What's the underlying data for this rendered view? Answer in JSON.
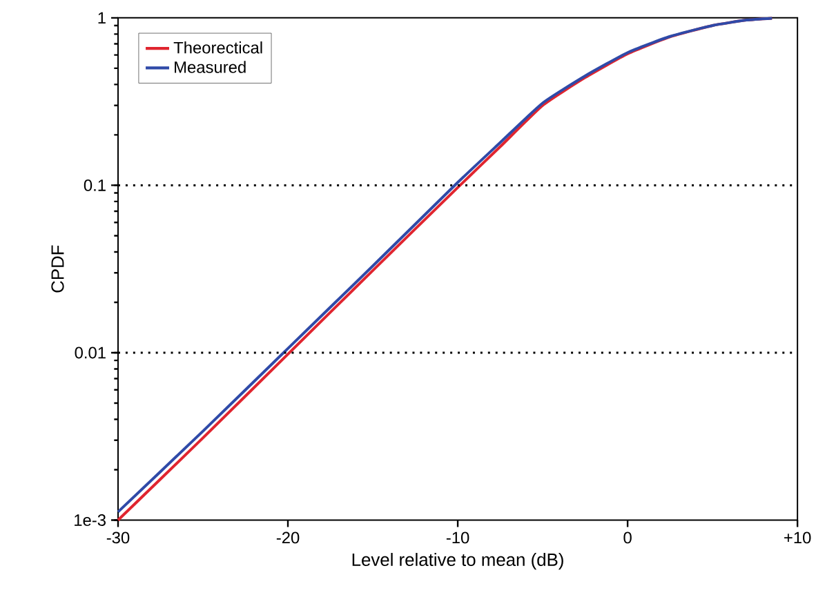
{
  "chart_data": {
    "type": "line",
    "xlabel": "Level relative to mean (dB)",
    "ylabel": "CPDF",
    "x": [
      -30,
      -25,
      -20,
      -15,
      -10,
      -7.5,
      -5,
      -2.5,
      0,
      2.5,
      5,
      7,
      8.5
    ],
    "series": [
      {
        "name": "Theorectical",
        "color": "#e0252f",
        "values": [
          0.001,
          0.0031,
          0.0098,
          0.031,
          0.097,
          0.17,
          0.3,
          0.44,
          0.61,
          0.77,
          0.9,
          0.97,
          0.995
        ]
      },
      {
        "name": "Measured",
        "color": "#2f4aa8",
        "values": [
          0.00112,
          0.0034,
          0.0106,
          0.033,
          0.104,
          0.18,
          0.31,
          0.45,
          0.62,
          0.775,
          0.9,
          0.97,
          0.995
        ]
      }
    ],
    "xlim": [
      -30,
      10
    ],
    "ylim": [
      0.001,
      1
    ],
    "log": "y",
    "xticks": [
      -30,
      -20,
      -10,
      0,
      {
        "value": 10,
        "label": "+10"
      }
    ],
    "yticks": [
      {
        "value": 0.001,
        "label": "1e-3"
      },
      0.01,
      0.1,
      1
    ],
    "ref_lines": [
      {
        "axis": "y",
        "value": 0.1,
        "color": "#000000",
        "line_style": "dotted"
      },
      {
        "axis": "y",
        "value": 0.01,
        "color": "#000000",
        "line_style": "dotted"
      }
    ],
    "legend": "top left",
    "line_style": "solid",
    "grid": false
  }
}
